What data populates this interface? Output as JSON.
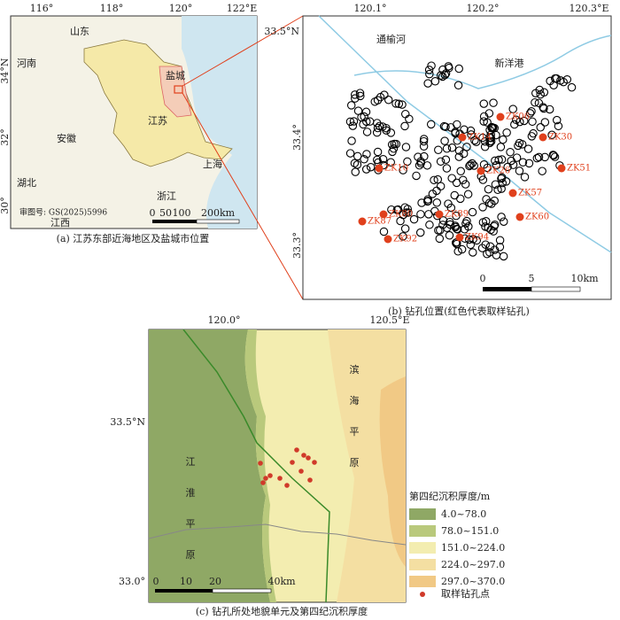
{
  "panel_a": {
    "caption": "(a) 江苏东部近海地区及盐城市位置",
    "lon_labels": [
      "116°",
      "118°",
      "120°",
      "122°E"
    ],
    "lat_labels": [
      "34°N",
      "32°",
      "30°"
    ],
    "places": [
      "山东",
      "河南",
      "盐城",
      "江苏",
      "安徽",
      "上海",
      "湖北",
      "浙江",
      "江西"
    ],
    "map_number": "审图号: GS(2025)5996",
    "scale_labels": [
      "0",
      "50",
      "100",
      "200km"
    ]
  },
  "panel_b": {
    "caption": "(b) 钻孔位置(红色代表取样钻孔)",
    "lon_labels": [
      "120.1°",
      "120.2°",
      "120.3°E"
    ],
    "lat_labels": [
      "33.5°N",
      "33.4°",
      "33.3°"
    ],
    "rivers": [
      "通榆河",
      "新洋港"
    ],
    "samples": [
      "ZK06",
      "ZK14",
      "ZK30",
      "ZK10",
      "ZK26",
      "ZK51",
      "ZK57",
      "ZK80",
      "ZK87",
      "ZK89",
      "ZK60",
      "ZK92",
      "ZK94"
    ],
    "scale_labels": [
      "0",
      "5",
      "10km"
    ]
  },
  "panel_c": {
    "caption": "(c) 钻孔所处地貌单元及第四纪沉积厚度",
    "lon_labels": [
      "120.0°",
      "120.5°E"
    ],
    "lat_labels": [
      "33.5°N",
      "33.0°"
    ],
    "units": [
      [
        "江",
        "淮",
        "平",
        "原"
      ],
      [
        "滨",
        "海",
        "平",
        "原"
      ]
    ],
    "scale_labels": [
      "0",
      "10",
      "20",
      "40km"
    ],
    "legend": {
      "title": "第四纪沉积厚度/m",
      "items": [
        {
          "label": "4.0~78.0",
          "color": "#8fa865"
        },
        {
          "label": "78.0~151.0",
          "color": "#b9c97c"
        },
        {
          "label": "151.0~224.0",
          "color": "#f3edb0"
        },
        {
          "label": "224.0~297.0",
          "color": "#f4dfa2"
        },
        {
          "label": "297.0~370.0",
          "color": "#f1c985"
        }
      ],
      "point_label": "取样钻孔点"
    }
  }
}
